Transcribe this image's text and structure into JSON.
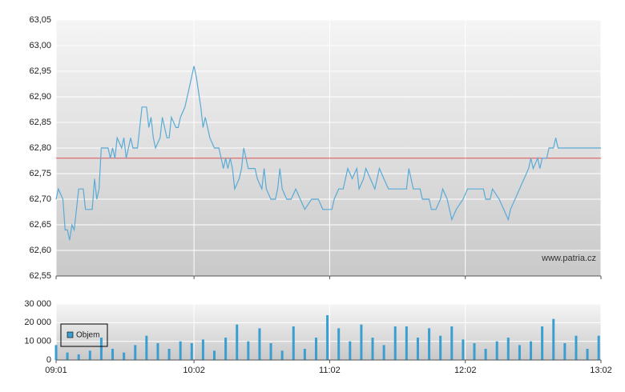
{
  "chart_data": [
    {
      "type": "line",
      "x": [
        "09:01",
        "09:02",
        "09:04",
        "09:05",
        "09:06",
        "09:07",
        "09:08",
        "09:09",
        "09:10",
        "09:11",
        "09:13",
        "09:14",
        "09:17",
        "09:18",
        "09:19",
        "09:20",
        "09:21",
        "09:24",
        "09:25",
        "09:26",
        "09:27",
        "09:28",
        "09:30",
        "09:31",
        "09:32",
        "09:33",
        "09:34",
        "09:35",
        "09:37",
        "09:38",
        "09:39",
        "09:41",
        "09:42",
        "09:43",
        "09:44",
        "09:45",
        "09:47",
        "09:48",
        "09:50",
        "09:51",
        "09:52",
        "09:54",
        "09:55",
        "09:56",
        "09:58",
        "10:00",
        "10:01",
        "10:02",
        "10:03",
        "10:05",
        "10:06",
        "10:07",
        "10:09",
        "10:11",
        "10:13",
        "10:15",
        "10:16",
        "10:17",
        "10:18",
        "10:19",
        "10:20",
        "10:22",
        "10:23",
        "10:24",
        "10:25",
        "10:26",
        "10:29",
        "10:30",
        "10:32",
        "10:33",
        "10:34",
        "10:36",
        "10:38",
        "10:39",
        "10:40",
        "10:41",
        "10:43",
        "10:45",
        "10:47",
        "10:49",
        "10:51",
        "10:54",
        "10:57",
        "10:59",
        "11:03",
        "11:04",
        "11:06",
        "11:08",
        "11:10",
        "11:12",
        "11:14",
        "11:15",
        "11:17",
        "11:18",
        "11:20",
        "11:22",
        "11:24",
        "11:26",
        "11:28",
        "11:30",
        "11:36",
        "11:37",
        "11:38",
        "11:39",
        "11:42",
        "11:43",
        "11:46",
        "11:47",
        "11:49",
        "11:51",
        "11:52",
        "11:54",
        "11:55",
        "11:56",
        "11:58",
        "12:01",
        "12:03",
        "12:06",
        "12:10",
        "12:11",
        "12:13",
        "12:14",
        "12:17",
        "12:19",
        "12:21",
        "12:22",
        "12:24",
        "12:26",
        "12:28",
        "12:30",
        "12:31",
        "12:32",
        "12:34",
        "12:35",
        "12:36",
        "12:38",
        "12:39",
        "12:41",
        "12:42",
        "12:43",
        "13:02"
      ],
      "values": [
        62.7,
        62.72,
        62.7,
        62.64,
        62.64,
        62.62,
        62.65,
        62.64,
        62.68,
        62.72,
        62.72,
        62.68,
        62.68,
        62.74,
        62.7,
        62.72,
        62.8,
        62.8,
        62.78,
        62.8,
        62.78,
        62.82,
        62.8,
        62.82,
        62.78,
        62.8,
        62.82,
        62.8,
        62.8,
        62.84,
        62.88,
        62.88,
        62.84,
        62.86,
        62.82,
        62.8,
        62.82,
        62.86,
        62.82,
        62.82,
        62.86,
        62.84,
        62.84,
        62.86,
        62.88,
        62.92,
        62.94,
        62.96,
        62.94,
        62.88,
        62.84,
        62.86,
        62.82,
        62.8,
        62.8,
        62.76,
        62.78,
        62.76,
        62.78,
        62.76,
        62.72,
        62.74,
        62.76,
        62.8,
        62.78,
        62.76,
        62.76,
        62.74,
        62.72,
        62.76,
        62.72,
        62.7,
        62.7,
        62.72,
        62.76,
        62.72,
        62.7,
        62.7,
        62.72,
        62.7,
        62.68,
        62.7,
        62.7,
        62.68,
        62.68,
        62.7,
        62.72,
        62.72,
        62.76,
        62.74,
        62.76,
        62.72,
        62.74,
        62.76,
        62.74,
        62.72,
        62.76,
        62.74,
        62.72,
        62.72,
        62.72,
        62.76,
        62.74,
        62.72,
        62.72,
        62.7,
        62.7,
        62.68,
        62.68,
        62.7,
        62.72,
        62.7,
        62.68,
        62.66,
        62.68,
        62.7,
        62.72,
        62.72,
        62.72,
        62.7,
        62.7,
        62.72,
        62.7,
        62.68,
        62.66,
        62.68,
        62.7,
        62.72,
        62.74,
        62.76,
        62.78,
        62.76,
        62.78,
        62.76,
        62.78,
        62.78,
        62.8,
        62.8,
        62.82,
        62.8,
        62.8
      ],
      "color": "#5aaad6",
      "reference_line": 62.78,
      "reference_color": "#e05050",
      "xlim": [
        "09:01",
        "13:02"
      ],
      "ylim": [
        62.55,
        63.05
      ],
      "yticks": [
        {
          "value": 62.55,
          "label": "62,55"
        },
        {
          "value": 62.6,
          "label": "62,60"
        },
        {
          "value": 62.65,
          "label": "62,65"
        },
        {
          "value": 62.7,
          "label": "62,70"
        },
        {
          "value": 62.75,
          "label": "62,75"
        },
        {
          "value": 62.8,
          "label": "62,80"
        },
        {
          "value": 62.85,
          "label": "62,85"
        },
        {
          "value": 62.9,
          "label": "62,90"
        },
        {
          "value": 62.95,
          "label": "62,95"
        },
        {
          "value": 63.0,
          "label": "63,00"
        },
        {
          "value": 63.05,
          "label": "63,05"
        }
      ],
      "grid": true,
      "watermark": "www.patria.cz"
    },
    {
      "type": "bar",
      "x": [
        "09:01",
        "09:06",
        "09:11",
        "09:16",
        "09:21",
        "09:26",
        "09:31",
        "09:36",
        "09:41",
        "09:46",
        "09:51",
        "09:56",
        "10:01",
        "10:06",
        "10:11",
        "10:16",
        "10:21",
        "10:26",
        "10:31",
        "10:36",
        "10:41",
        "10:46",
        "10:51",
        "10:56",
        "11:01",
        "11:06",
        "11:11",
        "11:16",
        "11:21",
        "11:26",
        "11:31",
        "11:36",
        "11:41",
        "11:46",
        "11:51",
        "11:56",
        "12:01",
        "12:06",
        "12:11",
        "12:16",
        "12:21",
        "12:26",
        "12:31",
        "12:36",
        "12:41",
        "12:46",
        "12:51",
        "12:56",
        "13:01"
      ],
      "series": [
        {
          "name": "Objem",
          "color": "#3a9fd0",
          "values": [
            8000,
            4000,
            3000,
            5000,
            12000,
            6000,
            4000,
            8000,
            13000,
            9000,
            6000,
            10000,
            9000,
            11000,
            5000,
            12000,
            19000,
            10000,
            17000,
            9000,
            5000,
            18000,
            6000,
            12000,
            24000,
            17000,
            10000,
            19000,
            12000,
            8000,
            18000,
            18000,
            12000,
            17000,
            13000,
            18000,
            11000,
            9000,
            6000,
            10000,
            12000,
            8000,
            10000,
            18000,
            22000,
            9000,
            13000,
            6000,
            13000
          ]
        }
      ],
      "xlim": [
        "09:01",
        "13:02"
      ],
      "xticks": [
        "09:01",
        "10:02",
        "11:02",
        "12:02",
        "13:02"
      ],
      "ylim": [
        0,
        30000
      ],
      "yticks": [
        0,
        {
          "value": 10000,
          "label": "10 000"
        },
        {
          "value": 20000,
          "label": "20 000"
        },
        {
          "value": 30000,
          "label": "30 000"
        }
      ],
      "grid": true,
      "legend": "top-left"
    }
  ]
}
